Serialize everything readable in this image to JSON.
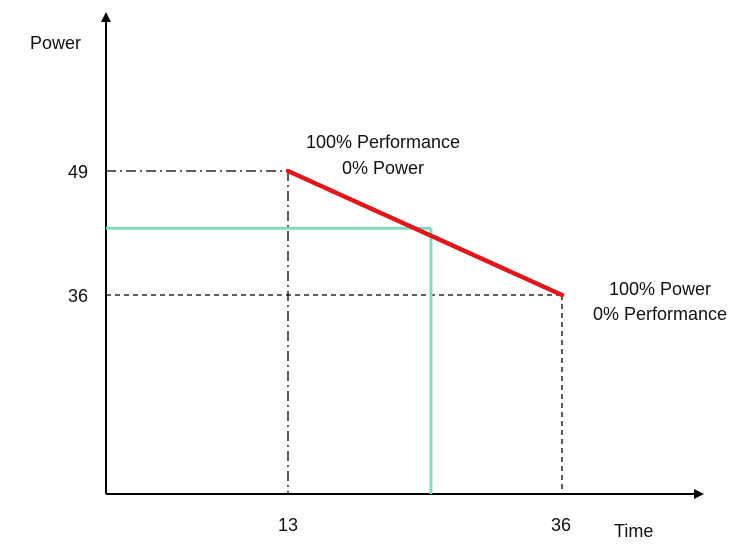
{
  "axes": {
    "x_label": "Time",
    "y_label": "Power",
    "x_ticks": [
      "13",
      "36"
    ],
    "y_ticks": [
      "49",
      "36"
    ]
  },
  "annotations": {
    "start_line1": "100% Performance",
    "start_line2": "0% Power",
    "end_line1": "100% Power",
    "end_line2": "0% Performance"
  },
  "chart_data": {
    "type": "line",
    "xlabel": "Time",
    "ylabel": "Power",
    "series": [
      {
        "x": [
          13,
          36
        ],
        "y": [
          49,
          36
        ]
      }
    ],
    "highlight_point": {
      "x": 25,
      "y": 43
    },
    "colors": {
      "line": "#e0161b",
      "highlight": "#7fdcbe",
      "axis": "#000000"
    }
  }
}
